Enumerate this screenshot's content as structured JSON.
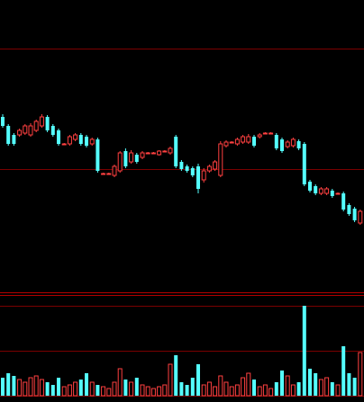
{
  "chart_data": [
    {
      "type": "candlestick",
      "ylim": [
        0,
        325
      ],
      "up_color": "#ff4040",
      "down_color": "#54ffff",
      "open": [
        195,
        185,
        175,
        175,
        177,
        175,
        180,
        185,
        195,
        185,
        180,
        165,
        165,
        170,
        175,
        173,
        165,
        170,
        132,
        132,
        130,
        135,
        157,
        145,
        153,
        150,
        155,
        155,
        153,
        157,
        155,
        173,
        145,
        140,
        138,
        140,
        125,
        135,
        137,
        130,
        163,
        167,
        165,
        167,
        167,
        173,
        173,
        177,
        177,
        175,
        170,
        162,
        163,
        168,
        165,
        123,
        118,
        110,
        110,
        113,
        110,
        110,
        97,
        93,
        77
      ],
      "close": [
        185,
        165,
        165,
        180,
        185,
        185,
        190,
        195,
        180,
        175,
        165,
        165,
        173,
        175,
        165,
        163,
        170,
        135,
        132,
        132,
        140,
        155,
        140,
        155,
        145,
        155,
        155,
        155,
        157,
        157,
        160,
        140,
        137,
        135,
        130,
        115,
        135,
        140,
        145,
        165,
        167,
        167,
        170,
        173,
        173,
        163,
        175,
        177,
        177,
        160,
        157,
        167,
        170,
        160,
        120,
        113,
        110,
        115,
        115,
        107,
        110,
        92,
        87,
        80,
        90
      ],
      "high": [
        198,
        187,
        177,
        182,
        187,
        188,
        192,
        198,
        197,
        187,
        182,
        166,
        175,
        177,
        177,
        175,
        172,
        172,
        133,
        133,
        142,
        157,
        160,
        158,
        155,
        157,
        156,
        156,
        158,
        158,
        162,
        175,
        147,
        142,
        140,
        143,
        138,
        142,
        147,
        168,
        169,
        168,
        172,
        175,
        176,
        175,
        177,
        178,
        178,
        177,
        172,
        169,
        172,
        170,
        167,
        125,
        120,
        117,
        117,
        115,
        111,
        112,
        99,
        95,
        92
      ],
      "low": [
        183,
        163,
        163,
        173,
        175,
        173,
        178,
        183,
        178,
        173,
        163,
        164,
        163,
        168,
        163,
        161,
        163,
        133,
        131,
        131,
        128,
        133,
        138,
        143,
        143,
        148,
        154,
        154,
        152,
        156,
        153,
        138,
        135,
        133,
        128,
        110,
        122,
        133,
        135,
        128,
        161,
        166,
        163,
        165,
        165,
        161,
        171,
        176,
        176,
        158,
        155,
        160,
        161,
        158,
        118,
        111,
        108,
        108,
        108,
        105,
        109,
        90,
        85,
        78,
        75
      ]
    },
    {
      "type": "bar",
      "ylim": [
        0,
        100
      ],
      "values": [
        20,
        25,
        22,
        18,
        15,
        20,
        22,
        18,
        15,
        12,
        20,
        10,
        12,
        15,
        18,
        25,
        15,
        12,
        10,
        8,
        15,
        30,
        18,
        15,
        20,
        12,
        10,
        8,
        10,
        12,
        35,
        45,
        15,
        12,
        20,
        35,
        12,
        15,
        10,
        22,
        15,
        10,
        12,
        20,
        25,
        18,
        10,
        12,
        8,
        15,
        28,
        22,
        12,
        15,
        100,
        30,
        25,
        18,
        20,
        15,
        12,
        55,
        25,
        20,
        48
      ]
    }
  ]
}
